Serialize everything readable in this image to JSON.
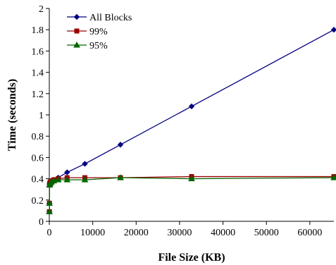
{
  "chart_data": {
    "type": "line",
    "title": "",
    "xlabel": "File Size (KB)",
    "ylabel": "Time (seconds)",
    "xlim": [
      0,
      65536
    ],
    "ylim": [
      0,
      2
    ],
    "grid": false,
    "legend_position": "top-left",
    "x_ticks": [
      0,
      10000,
      20000,
      30000,
      40000,
      50000,
      60000
    ],
    "x_tick_labels": [
      "0",
      "10000",
      "20000",
      "30000",
      "40000",
      "50000",
      "60000"
    ],
    "y_ticks": [
      0,
      0.2,
      0.4,
      0.6,
      0.8,
      1,
      1.2,
      1.4,
      1.6,
      1.8,
      2
    ],
    "y_tick_labels": [
      "0",
      "0.2",
      "0.4",
      "0.6",
      "0.8",
      "1",
      "1.2",
      "1.4",
      "1.6",
      "1.8",
      "2"
    ],
    "series": [
      {
        "name": "All Blocks",
        "color": "#000080",
        "marker": "diamond",
        "x": [
          16,
          32,
          64,
          128,
          256,
          512,
          1024,
          2048,
          4096,
          8192,
          16384,
          32768,
          65536
        ],
        "y": [
          0.09,
          0.17,
          0.35,
          0.36,
          0.37,
          0.38,
          0.39,
          0.41,
          0.46,
          0.54,
          0.72,
          1.08,
          1.8
        ]
      },
      {
        "name": "99%",
        "color": "#990000",
        "marker": "square",
        "x": [
          16,
          32,
          64,
          128,
          256,
          512,
          1024,
          2048,
          4096,
          8192,
          16384,
          32768,
          65536
        ],
        "y": [
          0.09,
          0.17,
          0.35,
          0.36,
          0.37,
          0.38,
          0.39,
          0.4,
          0.41,
          0.41,
          0.41,
          0.42,
          0.42
        ]
      },
      {
        "name": "95%",
        "color": "#006600",
        "marker": "triangle",
        "x": [
          16,
          32,
          64,
          128,
          256,
          512,
          1024,
          2048,
          4096,
          8192,
          16384,
          32768,
          65536
        ],
        "y": [
          0.09,
          0.17,
          0.34,
          0.35,
          0.36,
          0.37,
          0.38,
          0.39,
          0.39,
          0.39,
          0.41,
          0.4,
          0.41
        ]
      }
    ]
  }
}
